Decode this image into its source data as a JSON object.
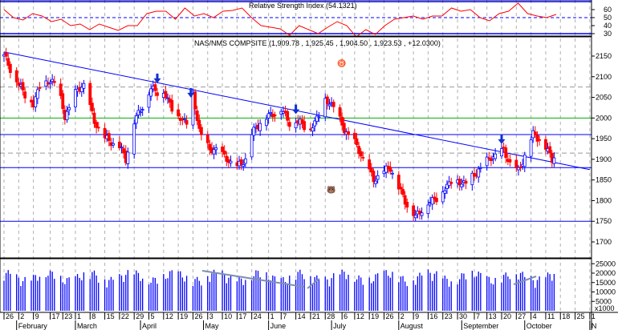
{
  "chart_data": {
    "type": "candlestick",
    "title": "NAS/NMS COMPSITE (1,909.78 , 1,925.45 , 1,904.50 , 1,923.53 , +12.0300)",
    "rsi_title": "Relative Strength Index (54.1321)",
    "price_ylim": [
      1650,
      2180
    ],
    "price_ticks": [
      1700,
      1750,
      1800,
      1850,
      1900,
      1950,
      2000,
      2050,
      2100,
      2150
    ],
    "rsi_ticks": [
      30,
      40,
      50,
      60
    ],
    "volume_ticks": [
      5000,
      10000,
      15000,
      20000,
      25000
    ],
    "volume_unit": "x1000",
    "closes": [
      [
        "01-26",
        2150
      ],
      [
        "02-02",
        2080
      ],
      [
        "02-09",
        2030
      ],
      [
        "02-12",
        2080
      ],
      [
        "02-20",
        2090
      ],
      [
        "02-24",
        2000
      ],
      [
        "03-01",
        2060
      ],
      [
        "03-05",
        2080
      ],
      [
        "03-10",
        1990
      ],
      [
        "03-15",
        1950
      ],
      [
        "03-22",
        1930
      ],
      [
        "03-25",
        1900
      ],
      [
        "03-29",
        1990
      ],
      [
        "04-02",
        2030
      ],
      [
        "04-06",
        2070
      ],
      [
        "04-12",
        2060
      ],
      [
        "04-19",
        2000
      ],
      [
        "04-23",
        1990
      ],
      [
        "04-26",
        2050
      ],
      [
        "04-29",
        1970
      ],
      [
        "05-04",
        1920
      ],
      [
        "05-07",
        1925
      ],
      [
        "05-12",
        1900
      ],
      [
        "05-17",
        1880
      ],
      [
        "05-21",
        1900
      ],
      [
        "05-24",
        1960
      ],
      [
        "05-28",
        1990
      ],
      [
        "06-03",
        2010
      ],
      [
        "06-07",
        2020
      ],
      [
        "06-11",
        1990
      ],
      [
        "06-16",
        1990
      ],
      [
        "06-21",
        1970
      ],
      [
        "06-24",
        2000
      ],
      [
        "06-28",
        2040
      ],
      [
        "07-02",
        2030
      ],
      [
        "07-07",
        1970
      ],
      [
        "07-12",
        1940
      ],
      [
        "07-16",
        1900
      ],
      [
        "07-21",
        1850
      ],
      [
        "07-26",
        1870
      ],
      [
        "07-29",
        1880
      ],
      [
        "08-02",
        1830
      ],
      [
        "08-06",
        1790
      ],
      [
        "08-10",
        1760
      ],
      [
        "08-13",
        1780
      ],
      [
        "08-18",
        1800
      ],
      [
        "08-23",
        1820
      ],
      [
        "08-27",
        1850
      ],
      [
        "09-01",
        1840
      ],
      [
        "09-07",
        1860
      ],
      [
        "09-10",
        1880
      ],
      [
        "09-14",
        1900
      ],
      [
        "09-17",
        1910
      ],
      [
        "09-21",
        1920
      ],
      [
        "09-24",
        1890
      ],
      [
        "09-28",
        1870
      ],
      [
        "10-01",
        1910
      ],
      [
        "10-05",
        1960
      ],
      [
        "10-08",
        1950
      ],
      [
        "10-12",
        1920
      ],
      [
        "10-14",
        1900
      ],
      [
        "10-16",
        1923.53
      ]
    ],
    "rsi": [
      60,
      50,
      47,
      55,
      52,
      45,
      48,
      40,
      42,
      35,
      42,
      38,
      34,
      40,
      40,
      55,
      58,
      58,
      48,
      62,
      52,
      55,
      50,
      58,
      59,
      62,
      50,
      40,
      38,
      36,
      28,
      40,
      35,
      30,
      38,
      45,
      40,
      26,
      35,
      29,
      40,
      48,
      50,
      52,
      48,
      52,
      52,
      62,
      58,
      60,
      50,
      46,
      55,
      58,
      68,
      55,
      52,
      50,
      54
    ],
    "reference_lines": {
      "green": 2000,
      "blue": [
        1750,
        1880,
        1960
      ],
      "dashed_gray": [
        2075,
        1915
      ]
    },
    "trendline": [
      [
        "01-26",
        2160
      ],
      [
        "11-01",
        1875
      ]
    ],
    "arrows": [
      "04-09",
      "04-25",
      "06-14",
      "09-20"
    ],
    "x_ticks": [
      "26",
      "2",
      "9",
      "17",
      "23",
      "1",
      "8",
      "15",
      "22",
      "29",
      "5",
      "12",
      "19",
      "26",
      "3",
      "10",
      "17",
      "24",
      "1",
      "7",
      "14",
      "21",
      "28",
      "6",
      "12",
      "19",
      "26",
      "2",
      "9",
      "16",
      "23",
      "30",
      "7",
      "13",
      "20",
      "27",
      "4",
      "11",
      "18",
      "25",
      "1"
    ],
    "x_tick_dates": [
      "01-26",
      "02-02",
      "02-09",
      "02-17",
      "02-23",
      "03-01",
      "03-08",
      "03-15",
      "03-22",
      "03-29",
      "04-05",
      "04-12",
      "04-19",
      "04-26",
      "05-03",
      "05-10",
      "05-17",
      "05-24",
      "06-01",
      "06-07",
      "06-14",
      "06-21",
      "06-28",
      "07-06",
      "07-12",
      "07-19",
      "07-26",
      "08-02",
      "08-09",
      "08-16",
      "08-23",
      "08-30",
      "09-07",
      "09-13",
      "09-20",
      "09-27",
      "10-04",
      "10-11",
      "10-18",
      "10-25",
      "11-01"
    ],
    "months": [
      [
        "February",
        "02-01"
      ],
      [
        "March",
        "03-01"
      ],
      [
        "April",
        "04-01"
      ],
      [
        "May",
        "05-01"
      ],
      [
        "June",
        "06-01"
      ],
      [
        "July",
        "07-01"
      ],
      [
        "August",
        "08-02"
      ],
      [
        "September",
        "09-01"
      ],
      [
        "October",
        "10-01"
      ],
      [
        "N",
        "11-01"
      ]
    ],
    "colors": {
      "up": "#0000ff",
      "down": "#ff0000",
      "rsi": "#ff0000",
      "axis": "#0000ff",
      "green": "#00b000"
    }
  }
}
